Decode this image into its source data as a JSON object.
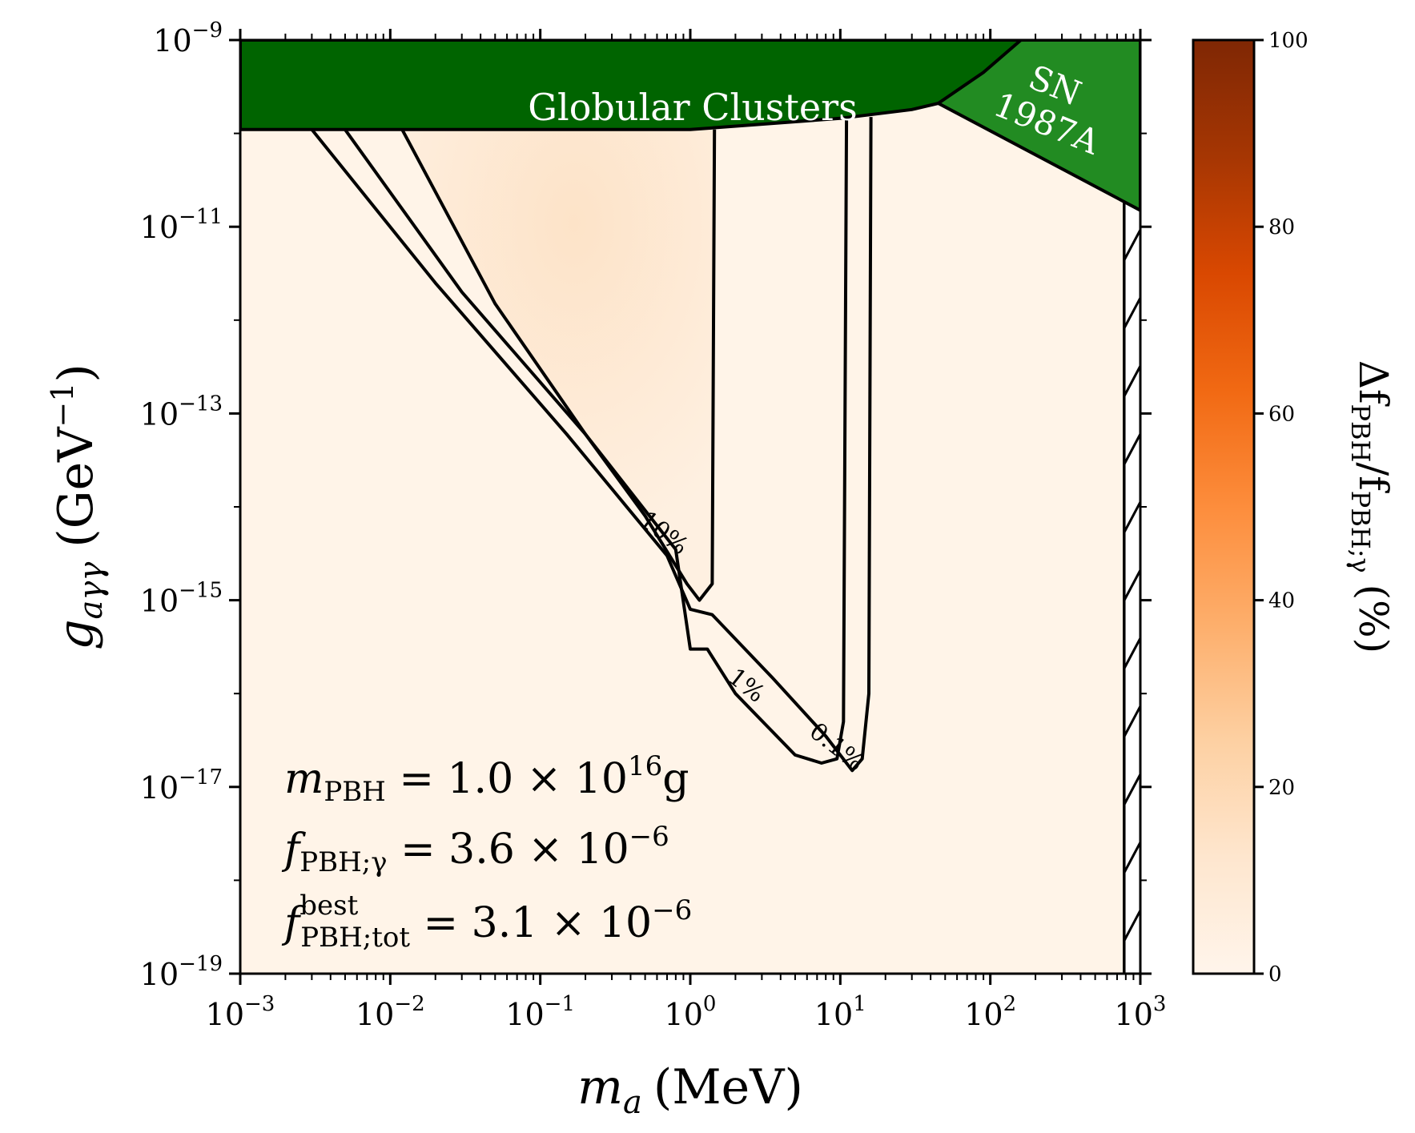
{
  "chart_data": {
    "type": "heatmap",
    "x_axis": {
      "label_base": "m",
      "label_sub": "a",
      "label_unit": "(MeV)",
      "scale": "log",
      "range": [
        0.001,
        1000
      ],
      "ticks": [
        {
          "value": 0.001,
          "base": "10",
          "exp": "−3"
        },
        {
          "value": 0.01,
          "base": "10",
          "exp": "−2"
        },
        {
          "value": 0.1,
          "base": "10",
          "exp": "−1"
        },
        {
          "value": 1,
          "base": "10",
          "exp": "0"
        },
        {
          "value": 10,
          "base": "10",
          "exp": "1"
        },
        {
          "value": 100,
          "base": "10",
          "exp": "2"
        },
        {
          "value": 1000,
          "base": "10",
          "exp": "3"
        }
      ]
    },
    "y_axis": {
      "label_base": "g",
      "label_sub": "aγγ",
      "label_unit": "(GeV",
      "label_unit_exp": "−1",
      "label_unit_close": ")",
      "scale": "log",
      "range": [
        1e-19,
        1e-09
      ],
      "ticks": [
        {
          "value": 1e-19,
          "base": "10",
          "exp": "−19"
        },
        {
          "value": 1e-17,
          "base": "10",
          "exp": "−17"
        },
        {
          "value": 1e-15,
          "base": "10",
          "exp": "−15"
        },
        {
          "value": 1e-13,
          "base": "10",
          "exp": "−13"
        },
        {
          "value": 1e-11,
          "base": "10",
          "exp": "−11"
        },
        {
          "value": 1e-09,
          "base": "10",
          "exp": "−9"
        }
      ]
    },
    "colorbar": {
      "label_delta": "Δf",
      "label_sub1": "PBH",
      "label_slash": "/f",
      "label_sub2": "PBH;γ",
      "label_unit": "(%)",
      "range": [
        0,
        100
      ],
      "ticks": [
        "0",
        "20",
        "40",
        "60",
        "80",
        "100"
      ],
      "colors": [
        "#fff5eb",
        "#fee6ce",
        "#fdd0a2",
        "#fdae6b",
        "#fd8d3c",
        "#f16913",
        "#d94801",
        "#a63603",
        "#7f2704"
      ]
    },
    "excluded_regions": [
      {
        "name": "Globular Clusters",
        "color": "#006400",
        "boundary": [
          [
            0.001,
            1.1e-10
          ],
          [
            1.0,
            1.1e-10
          ],
          [
            10,
            1.45e-10
          ],
          [
            30,
            1.8e-10
          ],
          [
            45,
            2.1e-10
          ],
          [
            1000,
            2.5e-10
          ]
        ]
      },
      {
        "name_line1": "SN",
        "name_line2": "1987A",
        "color": "#228b22",
        "boundary": [
          [
            45,
            2.1e-10
          ],
          [
            90,
            4.5e-10
          ],
          [
            160,
            1e-09
          ],
          [
            1000,
            1e-09
          ],
          [
            1000,
            1.5e-11
          ]
        ]
      }
    ],
    "contours": [
      {
        "label": "10%",
        "level": 10,
        "points": [
          [
            0.012,
            1.1e-10
          ],
          [
            0.05,
            1.5e-12
          ],
          [
            0.2,
            6e-14
          ],
          [
            0.5,
            8e-15
          ],
          [
            0.95,
            1.5e-15
          ],
          [
            1.15,
            1e-15
          ],
          [
            1.4,
            1.5e-15
          ],
          [
            1.45,
            1.1e-10
          ]
        ]
      },
      {
        "label": "1%",
        "level": 1,
        "points": [
          [
            0.005,
            1.1e-10
          ],
          [
            0.03,
            2e-12
          ],
          [
            0.2,
            6e-14
          ],
          [
            0.8,
            3.5e-15
          ],
          [
            1.0,
            3e-16
          ],
          [
            1.3,
            3e-16
          ],
          [
            2.0,
            1e-16
          ],
          [
            5.0,
            2.2e-17
          ],
          [
            7.5,
            1.8e-17
          ],
          [
            9.5,
            2e-17
          ],
          [
            10.5,
            5e-17
          ],
          [
            11,
            1.45e-10
          ]
        ]
      },
      {
        "label": "0.1%",
        "level": 0.1,
        "points": [
          [
            0.003,
            1.1e-10
          ],
          [
            0.02,
            2.5e-12
          ],
          [
            0.15,
            6e-14
          ],
          [
            0.7,
            3e-15
          ],
          [
            1.0,
            8e-16
          ],
          [
            1.4,
            7e-16
          ],
          [
            3.5,
            1.5e-16
          ],
          [
            8.0,
            3.5e-17
          ],
          [
            12,
            1.5e-17
          ],
          [
            14,
            2e-17
          ],
          [
            15.5,
            1e-16
          ],
          [
            16,
            1.5e-10
          ]
        ]
      }
    ],
    "hatched_region": {
      "x_range": [
        780,
        1000
      ]
    },
    "annotation": {
      "line1_var": "m",
      "line1_sub": "PBH",
      "line1_mid": " = 1.0 × 10",
      "line1_exp": "16",
      "line1_end": "g",
      "line2_var": "f",
      "line2_sub": "PBH;γ",
      "line2_mid": " = 3.6 × 10",
      "line2_exp": "−6",
      "line3_var": "f",
      "line3_sup": "best",
      "line3_sub": "PBH;tot",
      "line3_mid": " = 3.1 × 10",
      "line3_exp": "−6"
    }
  }
}
